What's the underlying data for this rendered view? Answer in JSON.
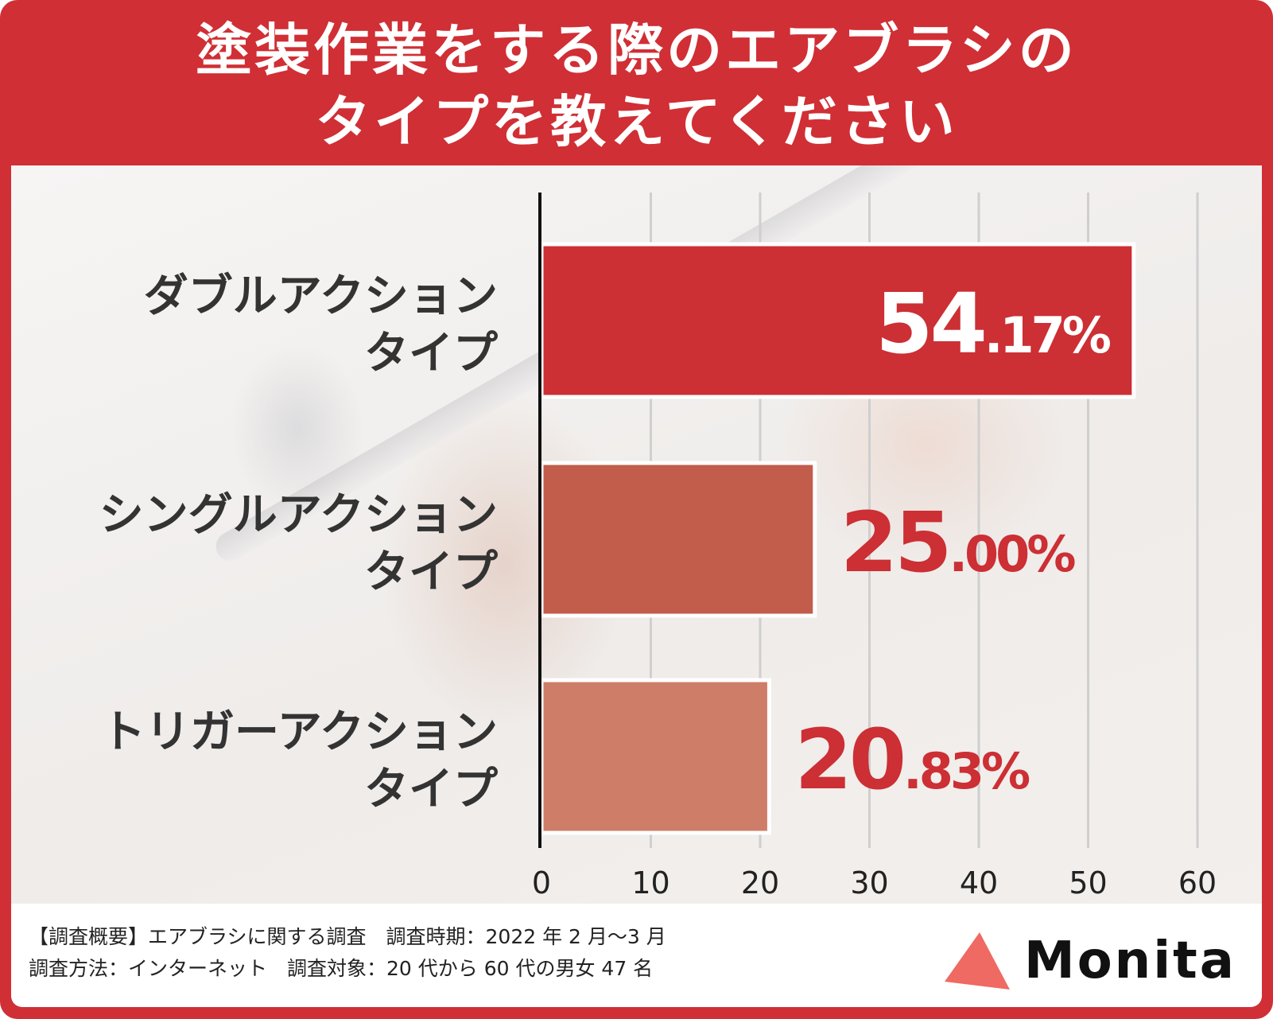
{
  "title_lines": [
    "塗装作業をする際のエアブラシの",
    "タイプを教えてください"
  ],
  "chart_data": {
    "type": "bar",
    "orientation": "horizontal",
    "categories": [
      [
        "ダブルアクション",
        "タイプ"
      ],
      [
        "シングルアクション",
        "タイプ"
      ],
      [
        "トリガーアクション",
        "タイプ"
      ]
    ],
    "values": [
      54.17,
      25.0,
      20.83
    ],
    "value_labels": [
      {
        "int": "54",
        "dec": ".17%"
      },
      {
        "int": "25",
        "dec": ".00%"
      },
      {
        "int": "20",
        "dec": ".83%"
      }
    ],
    "bar_colors": [
      "#cc2f34",
      "#c25d4c",
      "#cd7d68"
    ],
    "xlim": [
      0,
      60
    ],
    "xticks": [
      "0",
      "10",
      "20",
      "30",
      "40",
      "50",
      "60"
    ],
    "grid": true
  },
  "footer": {
    "line1": "【調査概要】エアブラシに関する調査　調査時期：2022 年 2 月〜3 月",
    "line2": "調査方法：インターネット　調査対象：20 代から 60 代の男女 47 名"
  },
  "logo": {
    "text": "Monita",
    "color": "#ee6a63"
  }
}
